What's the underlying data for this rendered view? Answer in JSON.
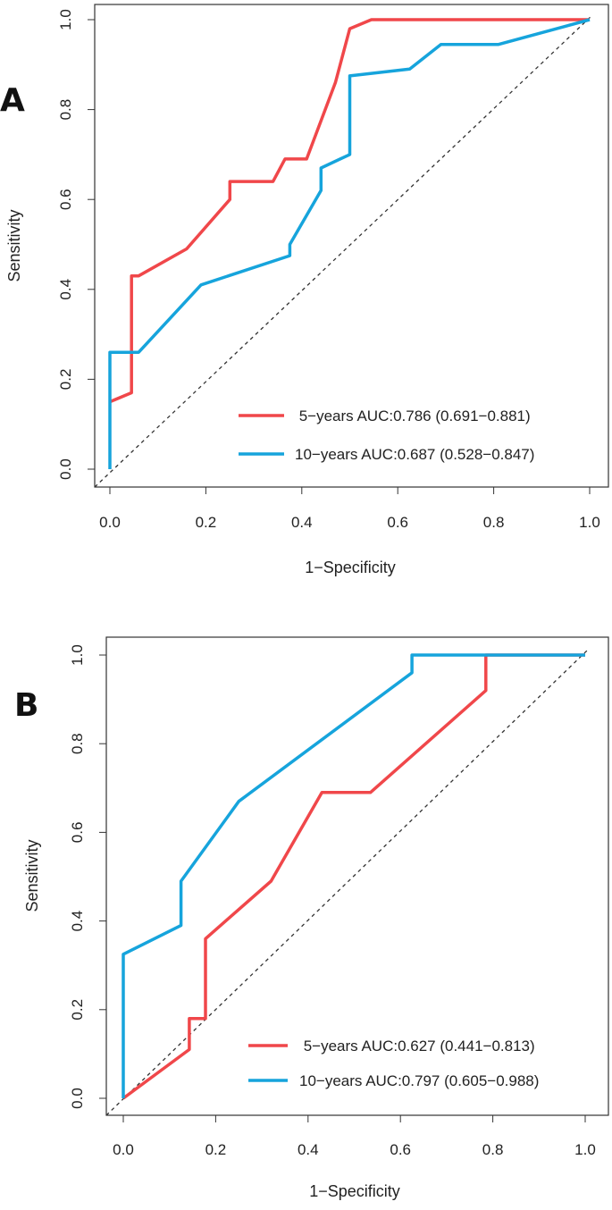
{
  "figure": {
    "colors": {
      "five_year": "#f0474a",
      "ten_year": "#16a4dc",
      "frame": "#333333",
      "diagonal": "#333333"
    }
  },
  "chart_data": [
    {
      "type": "line",
      "panel": "A",
      "xlabel": "1−Specificity",
      "ylabel": "Sensitivity",
      "xlim": [
        0,
        1
      ],
      "ylim": [
        0,
        1
      ],
      "x_ticks": [
        "0.0",
        "0.2",
        "0.4",
        "0.6",
        "0.8",
        "1.0"
      ],
      "y_ticks": [
        "0.0",
        "0.2",
        "0.4",
        "0.6",
        "0.8",
        "1.0"
      ],
      "legend_position": "bottom-right",
      "reference_line": "diagonal dashed",
      "series": [
        {
          "name": "5-years",
          "legend": " 5−years AUC:0.786 (0.691−0.881)",
          "color": "#f0474a",
          "x": [
            0,
            0.045,
            0.045,
            0.06,
            0.16,
            0.25,
            0.25,
            0.34,
            0.365,
            0.41,
            0.47,
            0.5,
            0.545,
            1.0
          ],
          "y": [
            0.15,
            0.17,
            0.43,
            0.43,
            0.49,
            0.6,
            0.64,
            0.64,
            0.69,
            0.69,
            0.86,
            0.98,
            1.0,
            1.0
          ]
        },
        {
          "name": "10-years",
          "legend": "10−years AUC:0.687 (0.528−0.847)",
          "color": "#16a4dc",
          "x": [
            0,
            0,
            0.06,
            0.19,
            0.375,
            0.375,
            0.44,
            0.44,
            0.5,
            0.5,
            0.625,
            0.69,
            0.81,
            1.0
          ],
          "y": [
            0,
            0.26,
            0.26,
            0.41,
            0.475,
            0.5,
            0.62,
            0.67,
            0.7,
            0.875,
            0.89,
            0.945,
            0.945,
            1.0
          ]
        }
      ]
    },
    {
      "type": "line",
      "panel": "B",
      "xlabel": "1−Specificity",
      "ylabel": "Sensitivity",
      "xlim": [
        0,
        1
      ],
      "ylim": [
        0,
        1
      ],
      "x_ticks": [
        "0.0",
        "0.2",
        "0.4",
        "0.6",
        "0.8",
        "1.0"
      ],
      "y_ticks": [
        "0.0",
        "0.2",
        "0.4",
        "0.6",
        "0.8",
        "1.0"
      ],
      "legend_position": "bottom-right",
      "reference_line": "diagonal dashed",
      "series": [
        {
          "name": "5-years",
          "legend": " 5−years AUC:0.627 (0.441−0.813)",
          "color": "#f0474a",
          "x": [
            0,
            0.143,
            0.143,
            0.178,
            0.178,
            0.32,
            0.43,
            0.535,
            0.785,
            0.785,
            1.0
          ],
          "y": [
            0,
            0.11,
            0.18,
            0.18,
            0.36,
            0.49,
            0.69,
            0.69,
            0.92,
            1.0,
            1.0
          ]
        },
        {
          "name": "10-years",
          "legend": "10−years AUC:0.797 (0.605−0.988)",
          "color": "#16a4dc",
          "x": [
            0,
            0,
            0.125,
            0.125,
            0.25,
            0.625,
            0.625,
            1.0
          ],
          "y": [
            0,
            0.325,
            0.39,
            0.49,
            0.67,
            0.96,
            1.0,
            1.0
          ]
        }
      ]
    }
  ]
}
